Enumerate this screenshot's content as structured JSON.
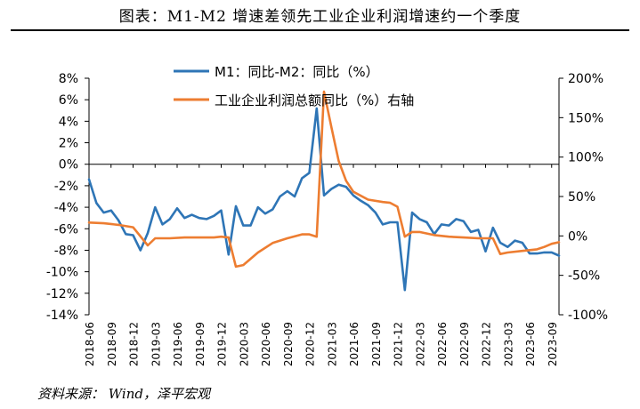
{
  "title": "图表：M1-M2 增速差领先工业企业利润增速约一个季度",
  "source": "资料来源： Wind，泽平宏观",
  "chart_data": {
    "type": "line",
    "x_tick_labels": [
      "2018-06",
      "2018-09",
      "2018-12",
      "2019-03",
      "2019-06",
      "2019-09",
      "2019-12",
      "2020-03",
      "2020-06",
      "2020-09",
      "2020-12",
      "2021-03",
      "2021-06",
      "2021-09",
      "2021-12",
      "2022-03",
      "2022-06",
      "2022-09",
      "2022-12",
      "2023-03",
      "2023-06",
      "2023-09"
    ],
    "y_left": {
      "min": -14,
      "max": 8,
      "step": 2,
      "unit": "%",
      "tick_labels": [
        "8%",
        "6%",
        "4%",
        "2%",
        "0%",
        "-2%",
        "-4%",
        "-6%",
        "-8%",
        "-10%",
        "-12%",
        "-14%"
      ]
    },
    "y_right": {
      "min": -100,
      "max": 200,
      "step": 50,
      "unit": "%",
      "tick_labels": [
        "200%",
        "150%",
        "100%",
        "50%",
        "0%",
        "-50%",
        "-100%"
      ]
    },
    "legend_position": "top-center",
    "grid": false,
    "series": [
      {
        "name": "M1：同比-M2：同比（%）",
        "axis": "left",
        "color": "#2E75B6",
        "x": [
          "2018-06",
          "2018-07",
          "2018-08",
          "2018-09",
          "2018-10",
          "2018-11",
          "2018-12",
          "2019-01",
          "2019-02",
          "2019-03",
          "2019-04",
          "2019-05",
          "2019-06",
          "2019-07",
          "2019-08",
          "2019-09",
          "2019-10",
          "2019-11",
          "2019-12",
          "2020-01",
          "2020-02",
          "2020-03",
          "2020-04",
          "2020-05",
          "2020-06",
          "2020-07",
          "2020-08",
          "2020-09",
          "2020-10",
          "2020-11",
          "2020-12",
          "2021-01",
          "2021-02",
          "2021-03",
          "2021-04",
          "2021-05",
          "2021-06",
          "2021-07",
          "2021-08",
          "2021-09",
          "2021-10",
          "2021-11",
          "2021-12",
          "2022-01",
          "2022-02",
          "2022-03",
          "2022-04",
          "2022-05",
          "2022-06",
          "2022-07",
          "2022-08",
          "2022-09",
          "2022-10",
          "2022-11",
          "2022-12",
          "2023-01",
          "2023-02",
          "2023-03",
          "2023-04",
          "2023-05",
          "2023-06",
          "2023-07",
          "2023-08",
          "2023-09",
          "2023-10"
        ],
        "values": [
          -1.4,
          -3.6,
          -4.5,
          -4.3,
          -5.2,
          -6.5,
          -6.6,
          -8.0,
          -6.4,
          -4.0,
          -5.6,
          -5.1,
          -4.1,
          -5.0,
          -4.7,
          -5.0,
          -5.1,
          -4.8,
          -4.3,
          -8.4,
          -3.9,
          -5.7,
          -5.7,
          -4.0,
          -4.6,
          -4.2,
          -3.0,
          -2.5,
          -3.0,
          -1.3,
          -0.8,
          5.2,
          -2.9,
          -2.3,
          -1.9,
          -2.1,
          -2.9,
          -3.4,
          -3.8,
          -4.5,
          -5.6,
          -5.4,
          -5.4,
          -11.7,
          -4.5,
          -5.1,
          -5.4,
          -6.5,
          -5.6,
          -5.7,
          -5.1,
          -5.3,
          -6.3,
          -6.1,
          -8.1,
          -5.9,
          -7.3,
          -7.7,
          -7.1,
          -7.3,
          -8.3,
          -8.3,
          -8.2,
          -8.2,
          -8.5
        ]
      },
      {
        "name": "工业企业利润总额同比（%）右轴",
        "axis": "right",
        "color": "#ED7D31",
        "x": [
          "2018-06",
          "2018-08",
          "2018-10",
          "2018-12",
          "2019-02",
          "2019-03",
          "2019-05",
          "2019-07",
          "2019-09",
          "2019-11",
          "2019-12",
          "2020-01",
          "2020-02",
          "2020-03",
          "2020-05",
          "2020-07",
          "2020-09",
          "2020-11",
          "2020-12",
          "2021-01",
          "2021-02",
          "2021-03",
          "2021-04",
          "2021-05",
          "2021-06",
          "2021-08",
          "2021-10",
          "2021-11",
          "2021-12",
          "2022-01",
          "2022-02",
          "2022-03",
          "2022-05",
          "2022-07",
          "2022-09",
          "2022-11",
          "2022-12",
          "2023-01",
          "2023-02",
          "2023-03",
          "2023-05",
          "2023-07",
          "2023-08",
          "2023-09",
          "2023-10"
        ],
        "values": [
          17,
          16,
          14,
          11,
          -12,
          -3,
          -3,
          -2,
          -2,
          -2,
          -1,
          -2,
          -39,
          -37,
          -21,
          -9,
          -3,
          2,
          2,
          -1,
          183,
          138,
          95,
          70,
          56,
          46,
          43,
          42,
          37,
          -1,
          5,
          5,
          1,
          -1,
          -2,
          -3,
          -3,
          -3,
          -23,
          -21,
          -19,
          -17,
          -14,
          -10,
          -8
        ]
      }
    ]
  }
}
